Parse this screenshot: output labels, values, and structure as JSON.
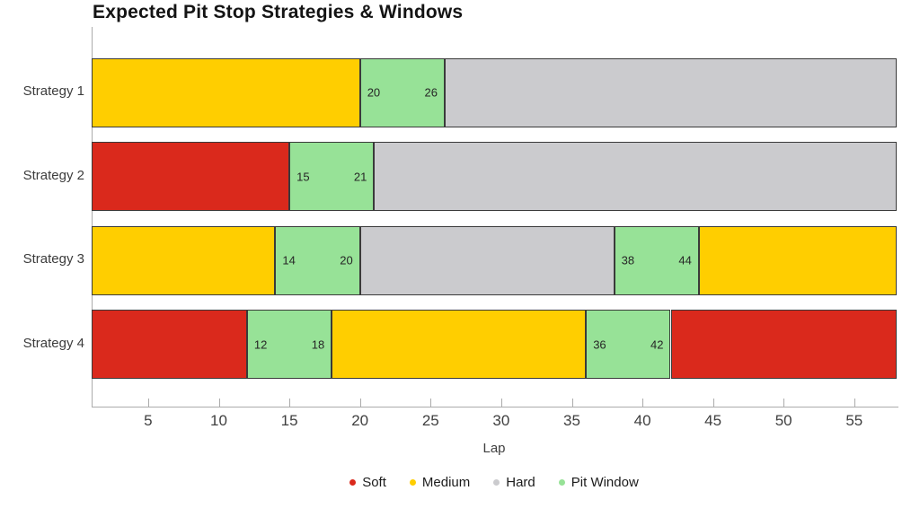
{
  "title": "Expected Pit Stop Strategies & Windows",
  "chart_data": {
    "type": "bar",
    "orientation": "horizontal",
    "title": "Expected Pit Stop Strategies & Windows",
    "xlabel": "Lap",
    "xlim": [
      1,
      58
    ],
    "x_ticks": [
      5,
      10,
      15,
      20,
      25,
      30,
      35,
      40,
      45,
      50,
      55
    ],
    "grid": false,
    "legend_position": "bottom",
    "compounds": {
      "Soft": "#DA291C",
      "Medium": "#FFCE00",
      "Hard": "#CBCBCE",
      "Pit Window": "#97E297"
    },
    "legend": [
      "Soft",
      "Medium",
      "Hard",
      "Pit Window"
    ],
    "categories": [
      "Strategy 1",
      "Strategy 2",
      "Strategy 3",
      "Strategy 4"
    ],
    "rows": [
      {
        "label": "Strategy 1",
        "segments": [
          {
            "type": "Medium",
            "start": 1,
            "end": 20
          },
          {
            "type": "Pit Window",
            "start": 20,
            "end": 26,
            "start_label": "20",
            "end_label": "26"
          },
          {
            "type": "Hard",
            "start": 26,
            "end": 58
          }
        ]
      },
      {
        "label": "Strategy 2",
        "segments": [
          {
            "type": "Soft",
            "start": 1,
            "end": 15
          },
          {
            "type": "Pit Window",
            "start": 15,
            "end": 21,
            "start_label": "15",
            "end_label": "21"
          },
          {
            "type": "Hard",
            "start": 21,
            "end": 58
          }
        ]
      },
      {
        "label": "Strategy 3",
        "segments": [
          {
            "type": "Medium",
            "start": 1,
            "end": 14
          },
          {
            "type": "Pit Window",
            "start": 14,
            "end": 20,
            "start_label": "14",
            "end_label": "20"
          },
          {
            "type": "Hard",
            "start": 20,
            "end": 38
          },
          {
            "type": "Pit Window",
            "start": 38,
            "end": 44,
            "start_label": "38",
            "end_label": "44"
          },
          {
            "type": "Medium",
            "start": 44,
            "end": 58
          }
        ]
      },
      {
        "label": "Strategy 4",
        "segments": [
          {
            "type": "Soft",
            "start": 1,
            "end": 12
          },
          {
            "type": "Pit Window",
            "start": 12,
            "end": 18,
            "start_label": "12",
            "end_label": "18"
          },
          {
            "type": "Medium",
            "start": 18,
            "end": 36
          },
          {
            "type": "Pit Window",
            "start": 36,
            "end": 42,
            "start_label": "36",
            "end_label": "42"
          },
          {
            "type": "Soft",
            "start": 42,
            "end": 58
          }
        ]
      }
    ]
  }
}
